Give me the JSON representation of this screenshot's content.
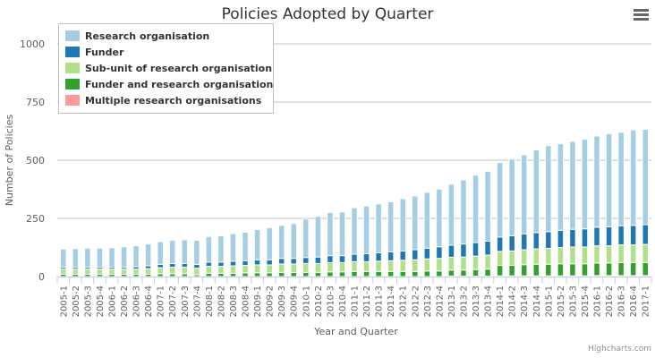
{
  "menu_icon": "hamburger-menu-icon",
  "credits": "Highcharts.com",
  "chart_data": {
    "type": "bar",
    "stacked": true,
    "title": "Policies Adopted by Quarter",
    "xlabel": "Year and Quarter",
    "ylabel": "Number of Policies",
    "ylim": [
      0,
      1000
    ],
    "yticks": [
      0,
      250,
      500,
      750,
      1000
    ],
    "grid": true,
    "legend_position": "top-left",
    "categories": [
      "2005-1",
      "2005-2",
      "2005-3",
      "2005-4",
      "2006-1",
      "2006-2",
      "2006-3",
      "2006-4",
      "2007-1",
      "2007-2",
      "2007-3",
      "2007-4",
      "2008-1",
      "2008-2",
      "2008-3",
      "2008-4",
      "2009-1",
      "2009-2",
      "2009-3",
      "2009-4",
      "2010-1",
      "2010-2",
      "2010-3",
      "2010-4",
      "2011-1",
      "2011-2",
      "2011-3",
      "2011-4",
      "2012-1",
      "2012-2",
      "2012-3",
      "2012-4",
      "2013-1",
      "2013-2",
      "2013-3",
      "2013-4",
      "2014-1",
      "2014-2",
      "2014-3",
      "2014-4",
      "2015-1",
      "2015-2",
      "2015-3",
      "2015-4",
      "2016-1",
      "2016-2",
      "2016-3",
      "2016-4",
      "2017-1"
    ],
    "series": [
      {
        "name": "Research organisation",
        "color": "#a6cee3",
        "values": [
          78,
          80,
          82,
          82,
          84,
          88,
          90,
          94,
          98,
          100,
          102,
          104,
          110,
          113,
          118,
          122,
          130,
          138,
          142,
          150,
          165,
          175,
          185,
          188,
          200,
          205,
          210,
          215,
          225,
          230,
          240,
          248,
          262,
          275,
          290,
          300,
          320,
          330,
          340,
          355,
          370,
          372,
          378,
          385,
          392,
          400,
          402,
          410,
          410
        ]
      },
      {
        "name": "Funder",
        "color": "#1f78b4",
        "values": [
          8,
          8,
          8,
          8,
          8,
          8,
          10,
          12,
          14,
          16,
          16,
          16,
          18,
          18,
          20,
          20,
          22,
          22,
          24,
          24,
          26,
          28,
          30,
          30,
          32,
          34,
          36,
          38,
          40,
          44,
          46,
          50,
          52,
          56,
          58,
          60,
          62,
          65,
          68,
          70,
          72,
          74,
          76,
          78,
          80,
          82,
          82,
          84,
          85
        ]
      },
      {
        "name": "Sub-unit of research organisation",
        "color": "#b2df8a",
        "values": [
          22,
          22,
          22,
          22,
          22,
          22,
          22,
          24,
          26,
          28,
          28,
          28,
          30,
          30,
          32,
          32,
          34,
          34,
          36,
          36,
          38,
          38,
          40,
          40,
          42,
          42,
          44,
          46,
          48,
          50,
          52,
          54,
          55,
          56,
          58,
          60,
          60,
          62,
          64,
          66,
          68,
          70,
          72,
          72,
          74,
          74,
          76,
          76,
          78
        ]
      },
      {
        "name": "Funder and research organisation",
        "color": "#33a02c",
        "values": [
          10,
          10,
          10,
          10,
          10,
          10,
          10,
          10,
          12,
          12,
          12,
          8,
          14,
          14,
          14,
          16,
          16,
          16,
          18,
          18,
          18,
          18,
          20,
          20,
          22,
          22,
          22,
          22,
          22,
          22,
          24,
          24,
          26,
          26,
          28,
          30,
          45,
          45,
          48,
          50,
          50,
          52,
          52,
          52,
          54,
          54,
          56,
          56,
          56
        ]
      },
      {
        "name": "Multiple research organisations",
        "color": "#fb9a99",
        "values": [
          0,
          0,
          0,
          0,
          0,
          0,
          0,
          0,
          0,
          0,
          0,
          0,
          0,
          0,
          0,
          0,
          0,
          0,
          0,
          0,
          0,
          0,
          0,
          0,
          0,
          0,
          0,
          0,
          0,
          0,
          0,
          0,
          2,
          2,
          2,
          2,
          3,
          3,
          3,
          3,
          3,
          3,
          3,
          3,
          4,
          4,
          4,
          4,
          4
        ]
      }
    ]
  }
}
